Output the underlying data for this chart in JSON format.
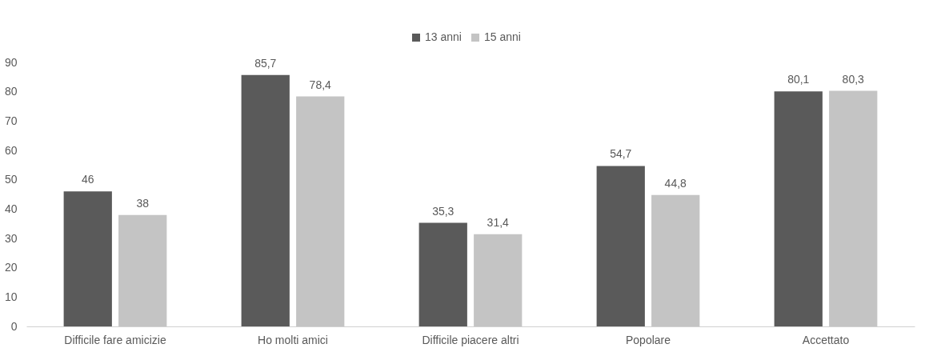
{
  "chart_data": {
    "type": "bar",
    "categories": [
      "Difficile fare amicizie",
      "Ho molti amici",
      "Difficile piacere altri",
      "Popolare",
      "Accettato"
    ],
    "series": [
      {
        "name": "13 anni",
        "color": "#5a5a5a",
        "values": [
          46,
          85.7,
          35.3,
          54.7,
          80.1
        ],
        "value_labels": [
          "46",
          "85,7",
          "35,3",
          "54,7",
          "80,1"
        ]
      },
      {
        "name": "15 anni",
        "color": "#c4c4c4",
        "values": [
          38,
          78.4,
          31.4,
          44.8,
          80.3
        ],
        "value_labels": [
          "38",
          "78,4",
          "31,4",
          "44,8",
          "80,3"
        ]
      }
    ],
    "ylim": [
      0,
      90
    ],
    "yticks": [
      0,
      10,
      20,
      30,
      40,
      50,
      60,
      70,
      80,
      90
    ],
    "grid": false,
    "legend": "top"
  }
}
